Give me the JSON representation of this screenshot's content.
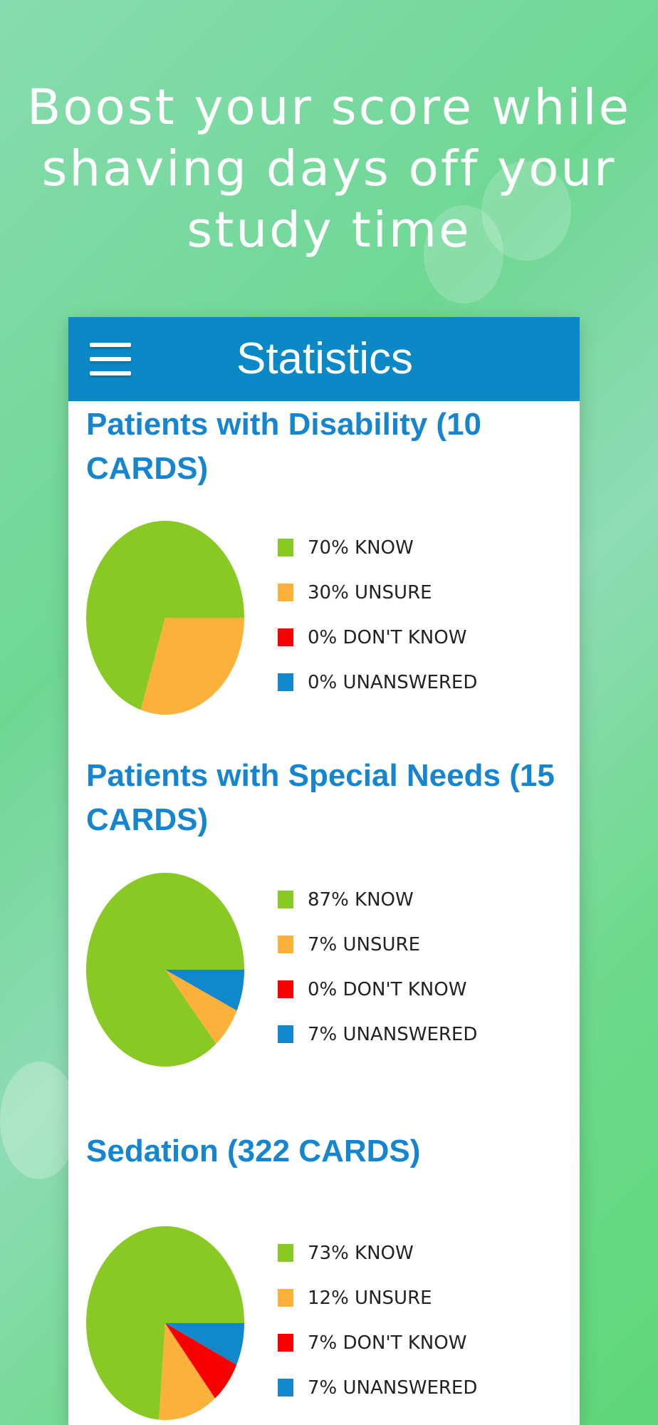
{
  "headline": {
    "line1": "Boost your score while",
    "line2": "shaving days off your",
    "line3": "study time"
  },
  "appbar": {
    "title": "Statistics",
    "menu_icon": "hamburger-menu-icon"
  },
  "colors": {
    "know": "#88c923",
    "unsure": "#fcb23a",
    "dont_know": "#f90000",
    "unanswered": "#1188cb",
    "appbar": "#0b89c6",
    "section_title": "#1585cf"
  },
  "sections": [
    {
      "title": "Patients with Disability (10 CARDS)",
      "legend": [
        "70% KNOW",
        "30% UNSURE",
        "0% DON'T KNOW",
        "0% UNANSWERED"
      ],
      "chart_data": {
        "type": "pie",
        "labels": [
          "KNOW",
          "UNSURE",
          "DON'T KNOW",
          "UNANSWERED"
        ],
        "values": [
          70,
          30,
          0,
          0
        ]
      }
    },
    {
      "title": "Patients with Special Needs (15 CARDS)",
      "legend": [
        "87% KNOW",
        "7% UNSURE",
        "0% DON'T KNOW",
        "7% UNANSWERED"
      ],
      "chart_data": {
        "type": "pie",
        "labels": [
          "KNOW",
          "UNSURE",
          "DON'T KNOW",
          "UNANSWERED"
        ],
        "values": [
          87,
          7,
          0,
          7
        ]
      }
    },
    {
      "title": "Sedation (322 CARDS)",
      "legend": [
        "73% KNOW",
        "12% UNSURE",
        "7% DON'T KNOW",
        "7% UNANSWERED"
      ],
      "chart_data": {
        "type": "pie",
        "labels": [
          "KNOW",
          "UNSURE",
          "DON'T KNOW",
          "UNANSWERED"
        ],
        "values": [
          73,
          12,
          7,
          7
        ]
      }
    }
  ]
}
